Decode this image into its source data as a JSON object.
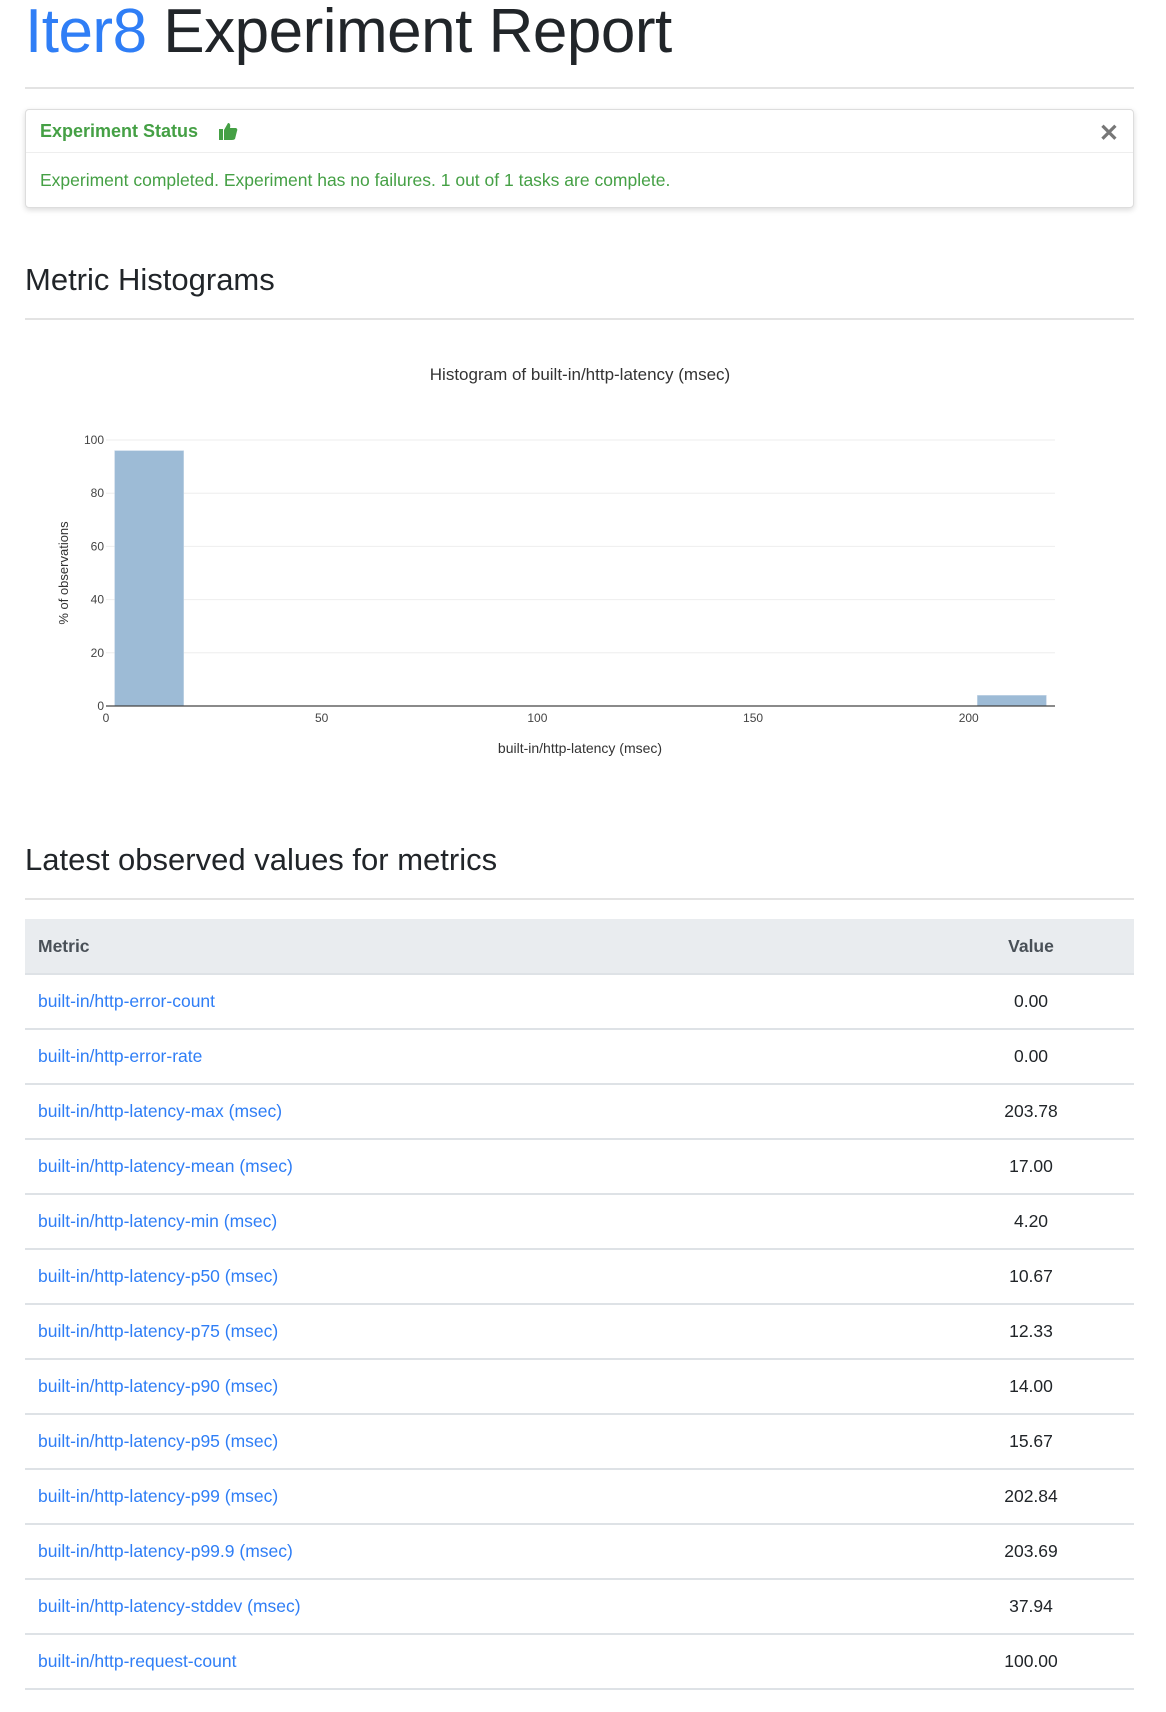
{
  "header": {
    "brand": "Iter8",
    "title": "Experiment Report"
  },
  "status_card": {
    "title": "Experiment Status",
    "icon": "thumbs-up-icon",
    "close_icon": "close-icon",
    "close_glyph": "✕",
    "message": "Experiment completed. Experiment has no failures. 1 out of 1 tasks are complete.",
    "color": "#45a045"
  },
  "histograms": {
    "heading": "Metric Histograms"
  },
  "chart_data": {
    "type": "bar",
    "title": "Histogram of built-in/http-latency (msec)",
    "xlabel": "built-in/http-latency (msec)",
    "ylabel": "% of observations",
    "xlim": [
      0,
      220
    ],
    "ylim": [
      0,
      100
    ],
    "xticks": [
      "0",
      "50",
      "100",
      "150",
      "200"
    ],
    "yticks": [
      "0",
      "20",
      "40",
      "60",
      "80",
      "100"
    ],
    "grid": true,
    "bins": [
      {
        "x0": 2,
        "x1": 18,
        "value": 96
      },
      {
        "x0": 202,
        "x1": 218,
        "value": 4
      }
    ],
    "bar_color": "#9dbbd6"
  },
  "metrics": {
    "heading": "Latest observed values for metrics",
    "columns": [
      "Metric",
      "Value"
    ],
    "rows": [
      {
        "metric": "built-in/http-error-count",
        "value": "0.00"
      },
      {
        "metric": "built-in/http-error-rate",
        "value": "0.00"
      },
      {
        "metric": "built-in/http-latency-max (msec)",
        "value": "203.78"
      },
      {
        "metric": "built-in/http-latency-mean (msec)",
        "value": "17.00"
      },
      {
        "metric": "built-in/http-latency-min (msec)",
        "value": "4.20"
      },
      {
        "metric": "built-in/http-latency-p50 (msec)",
        "value": "10.67"
      },
      {
        "metric": "built-in/http-latency-p75 (msec)",
        "value": "12.33"
      },
      {
        "metric": "built-in/http-latency-p90 (msec)",
        "value": "14.00"
      },
      {
        "metric": "built-in/http-latency-p95 (msec)",
        "value": "15.67"
      },
      {
        "metric": "built-in/http-latency-p99 (msec)",
        "value": "202.84"
      },
      {
        "metric": "built-in/http-latency-p99.9 (msec)",
        "value": "203.69"
      },
      {
        "metric": "built-in/http-latency-stddev (msec)",
        "value": "37.94"
      },
      {
        "metric": "built-in/http-request-count",
        "value": "100.00"
      }
    ]
  }
}
